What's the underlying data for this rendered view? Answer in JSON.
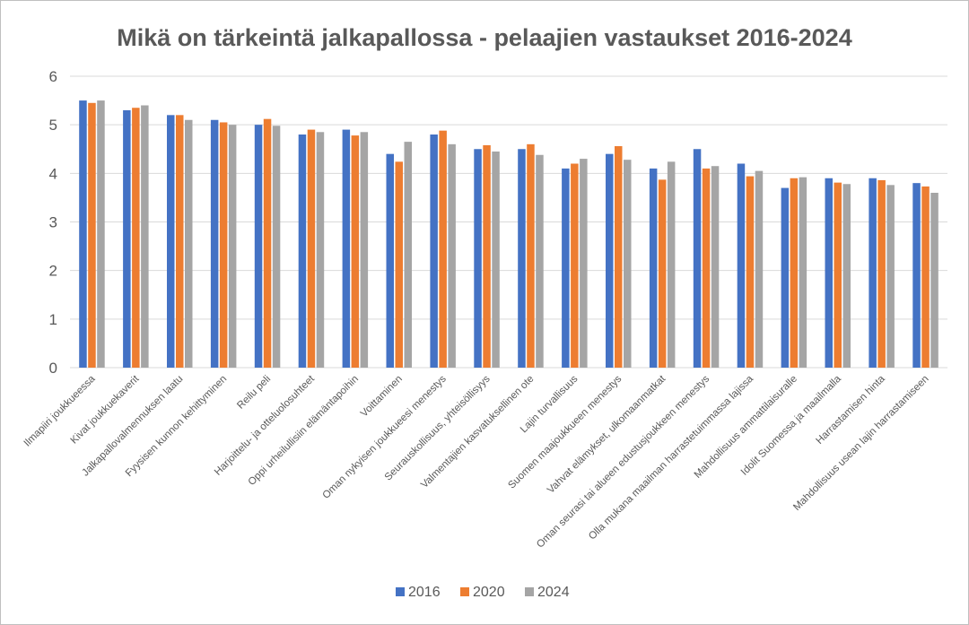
{
  "chart_data": {
    "type": "bar",
    "title": "Mikä on tärkeintä jalkapallossa - pelaajien vastaukset 2016-2024",
    "xlabel": "",
    "ylabel": "",
    "ylim": [
      0,
      6
    ],
    "yticks": [
      0,
      1,
      2,
      3,
      4,
      5,
      6
    ],
    "grid": true,
    "legend": "bottom",
    "categories": [
      "Ilmapiiri joukkueessa",
      "Kivat joukkuekaverit",
      "Jalkapallovalmennuksen laatu",
      "Fyysisen kunnon kehittyminen",
      "Reilu peli",
      "Harjoittelu- ja otteluolosuhteet",
      "Oppi urheilullisiin elämäntapoihin",
      "Voittaminen",
      "Oman nykyisen joukkueesi menestys",
      "Seurauskollisuus, yhteisöllisyys",
      "Valmentajien kasvatuksellinen ote",
      "Lajin turvallisuus",
      "Suomen maajoukkueen menestys",
      "Vahvat elämykset, ulkomaanmatkat",
      "Oman seurasi tai alueen edustusjoukkeen menestys",
      "Olla mukana maailman harrastetuimmassa lajissa",
      "Mahdollisuus ammattilaisuralle",
      "Idolit Suomessa ja maailmalla",
      "Harrastamisen hinta",
      "Mahdollisuus usean lajin harrastamiseen"
    ],
    "series": [
      {
        "name": "2016",
        "color": "#4472c4",
        "values": [
          5.5,
          5.3,
          5.2,
          5.1,
          5.0,
          4.8,
          4.9,
          4.4,
          4.8,
          4.5,
          4.5,
          4.1,
          4.4,
          4.1,
          4.5,
          4.2,
          3.7,
          3.9,
          3.9,
          3.8
        ]
      },
      {
        "name": "2020",
        "color": "#ed7d31",
        "values": [
          5.45,
          5.35,
          5.2,
          5.05,
          5.12,
          4.9,
          4.78,
          4.24,
          4.88,
          4.58,
          4.6,
          4.2,
          4.56,
          3.87,
          4.1,
          3.94,
          3.9,
          3.81,
          3.86,
          3.73
        ]
      },
      {
        "name": "2024",
        "color": "#a5a5a5",
        "values": [
          5.5,
          5.4,
          5.1,
          5.0,
          4.98,
          4.85,
          4.85,
          4.65,
          4.6,
          4.45,
          4.38,
          4.3,
          4.28,
          4.24,
          4.15,
          4.05,
          3.92,
          3.78,
          3.76,
          3.6
        ]
      }
    ]
  }
}
